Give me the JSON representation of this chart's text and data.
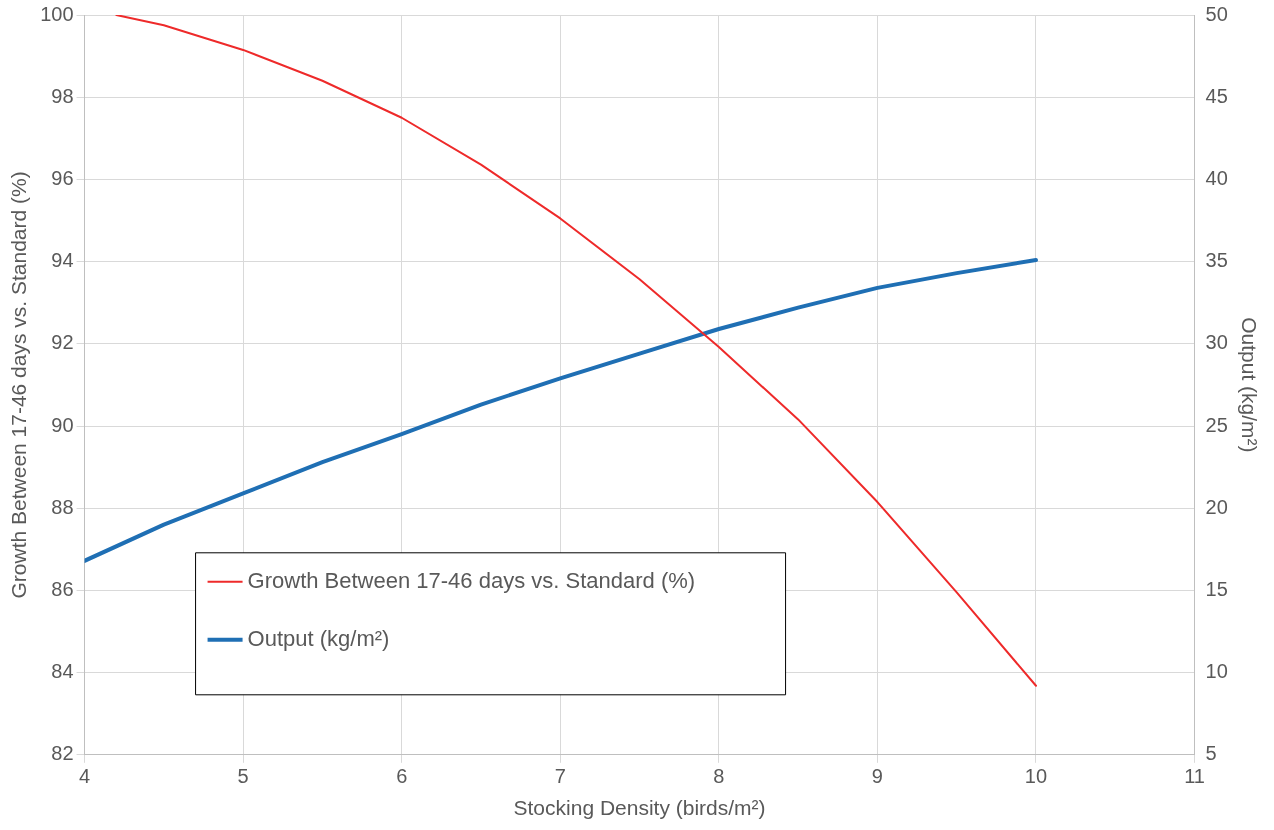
{
  "chart_data": {
    "type": "line",
    "xlabel": "Stocking Density (birds/m²)",
    "ylabel": "Growth Between 17-46 days vs. Standard (%)",
    "y2label": "Output (kg/m²)",
    "xlim": [
      4,
      11
    ],
    "xticks": [
      4,
      5,
      6,
      7,
      8,
      9,
      10,
      11
    ],
    "ylim": [
      82,
      100
    ],
    "yticks": [
      82,
      84,
      86,
      88,
      90,
      92,
      94,
      96,
      98,
      100
    ],
    "y2lim": [
      5,
      50
    ],
    "y2ticks": [
      5,
      10,
      15,
      20,
      25,
      30,
      35,
      40,
      45,
      50
    ],
    "grid": true,
    "legend": "bottom left",
    "marker": "none",
    "line_style": "solid",
    "series": [
      {
        "name": "Growth Between 17-46 days vs. Standard (%)",
        "color": "#ee2a2a",
        "x": [
          4.2,
          4.5,
          5,
          5.5,
          6,
          6.5,
          7,
          7.5,
          8,
          8.5,
          9,
          9.5,
          10
        ],
        "values": [
          100,
          99.75,
          99.15,
          98.4,
          97.5,
          96.36,
          95.05,
          93.57,
          91.92,
          90.16,
          88.15,
          85.95,
          83.68
        ]
      },
      {
        "name": "Output (kg/m²)",
        "color": "#1f6fb4",
        "axis": "y2",
        "x": [
          4,
          4.5,
          5,
          5.5,
          6,
          6.5,
          7,
          7.5,
          8,
          8.5,
          9,
          9.5,
          10
        ],
        "values": [
          16.8,
          19.0,
          20.9,
          22.8,
          24.5,
          26.3,
          27.9,
          29.4,
          30.9,
          32.2,
          33.4,
          34.3,
          35.1
        ]
      }
    ]
  }
}
